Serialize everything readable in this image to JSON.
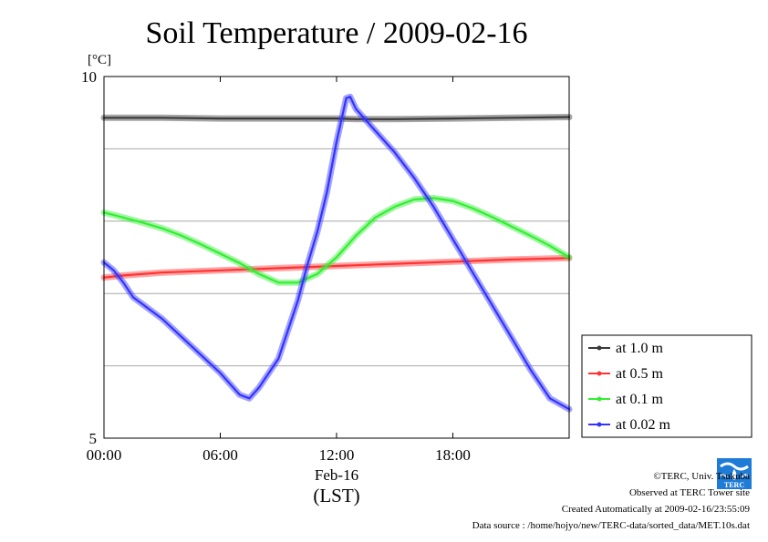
{
  "chart_data": {
    "type": "line",
    "title": "Soil Temperature / 2009-02-16",
    "ylabel": "[°C]",
    "xlabel": "Feb-16",
    "xlabel_sub": "(LST)",
    "ylim": [
      5,
      10
    ],
    "xlim": [
      0,
      24
    ],
    "y_ticks": [
      5,
      10
    ],
    "y_gridlines": [
      6,
      7,
      8,
      9
    ],
    "x_ticks": [
      {
        "value": 0,
        "label": "00:00"
      },
      {
        "value": 6,
        "label": "06:00"
      },
      {
        "value": 12,
        "label": "12:00"
      },
      {
        "value": 18,
        "label": "18:00"
      }
    ],
    "grid": true,
    "legend_position": "right",
    "series": [
      {
        "name": "at 1.0 m",
        "color": "#3a3a3a",
        "x": [
          0,
          3,
          6,
          9,
          12,
          13,
          15,
          18,
          21,
          24
        ],
        "y": [
          9.43,
          9.43,
          9.42,
          9.42,
          9.42,
          9.41,
          9.41,
          9.42,
          9.43,
          9.44
        ]
      },
      {
        "name": "at 0.5 m",
        "color": "#ff3333",
        "x": [
          0,
          1,
          3,
          6,
          9,
          12,
          15,
          18,
          21,
          24
        ],
        "y": [
          7.22,
          7.25,
          7.29,
          7.32,
          7.35,
          7.38,
          7.41,
          7.44,
          7.47,
          7.49
        ]
      },
      {
        "name": "at 0.1 m",
        "color": "#33ee33",
        "x": [
          0,
          1,
          2,
          3,
          4,
          5,
          6,
          7,
          8,
          9,
          10,
          11,
          12,
          13,
          14,
          15,
          16,
          17,
          18,
          19,
          20,
          21,
          22,
          23,
          24
        ],
        "y": [
          8.12,
          8.05,
          7.98,
          7.9,
          7.8,
          7.68,
          7.55,
          7.42,
          7.27,
          7.15,
          7.15,
          7.27,
          7.5,
          7.8,
          8.05,
          8.2,
          8.3,
          8.32,
          8.28,
          8.18,
          8.06,
          7.93,
          7.8,
          7.66,
          7.5
        ]
      },
      {
        "name": "at 0.02 m",
        "color": "#3333ff",
        "x": [
          0,
          0.5,
          1,
          1.5,
          2,
          3,
          4,
          5,
          6,
          7,
          7.5,
          8,
          9,
          10,
          10.5,
          11,
          11.5,
          12,
          12.5,
          12.7,
          13,
          13.5,
          14,
          15,
          16,
          17,
          18,
          19,
          20,
          21,
          22,
          23,
          24
        ],
        "y": [
          7.43,
          7.32,
          7.15,
          6.95,
          6.85,
          6.65,
          6.4,
          6.15,
          5.9,
          5.6,
          5.55,
          5.7,
          6.1,
          6.9,
          7.4,
          7.85,
          8.4,
          9.1,
          9.7,
          9.72,
          9.55,
          9.4,
          9.25,
          8.95,
          8.6,
          8.2,
          7.75,
          7.3,
          6.85,
          6.4,
          5.95,
          5.55,
          5.4
        ]
      }
    ]
  },
  "footer": {
    "copyright": "©TERC, Univ. Tsukuba",
    "observed": "Observed at TERC Tower site",
    "created": "Created Automatically at 2009-02-16/23:55:09",
    "source": "Data source : /home/hojyo/new/TERC-data/sorted_data/MET.10s.dat",
    "logo_text": "TERC"
  }
}
